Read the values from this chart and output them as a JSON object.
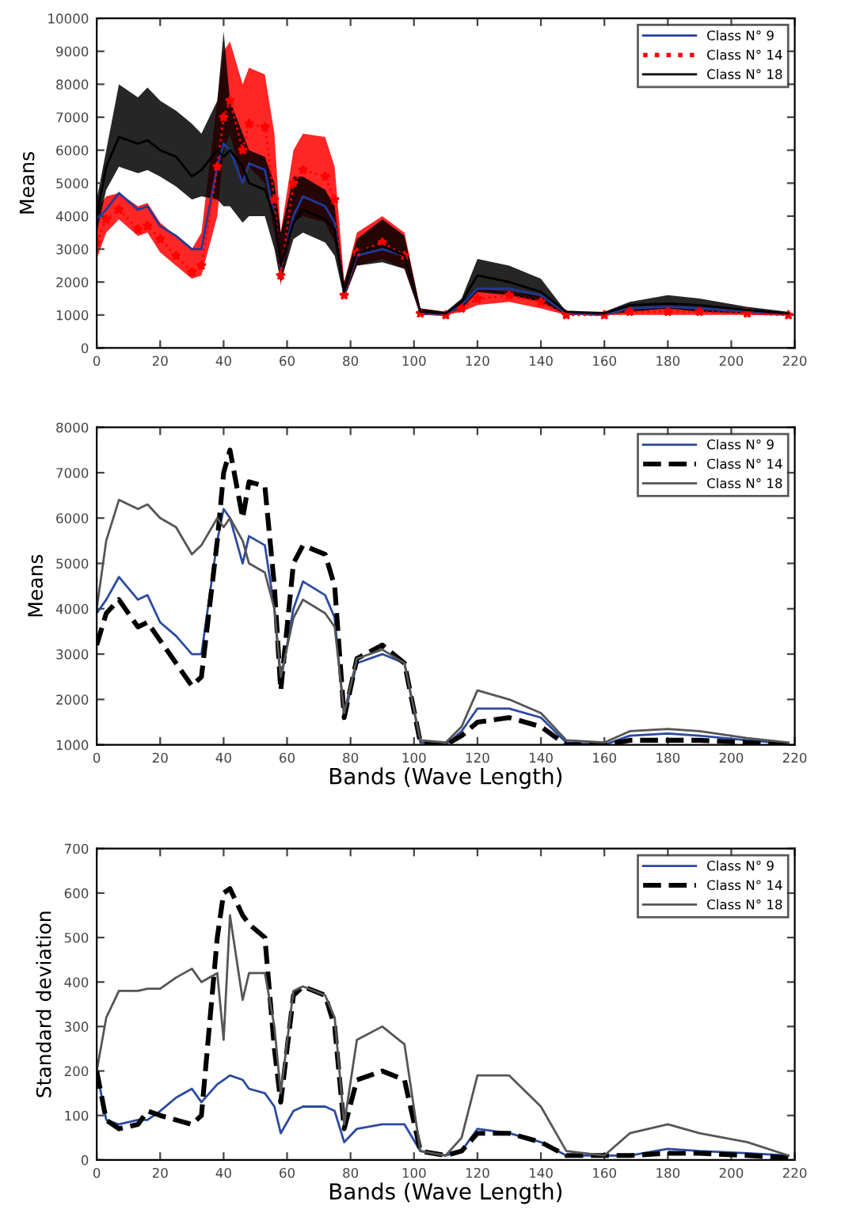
{
  "chart_data": [
    {
      "type": "line",
      "ylabel": "Means",
      "x": [
        0,
        3,
        7,
        13,
        16,
        20,
        25,
        30,
        33,
        38,
        40,
        42,
        46,
        48,
        53,
        56,
        58,
        62,
        65,
        72,
        75,
        78,
        82,
        90,
        97,
        102,
        110,
        115,
        120,
        130,
        140,
        148,
        160,
        168,
        180,
        190,
        205,
        218
      ],
      "xlim": [
        0,
        220
      ],
      "xticks": [
        0,
        20,
        40,
        60,
        80,
        100,
        120,
        140,
        160,
        180,
        200,
        220
      ],
      "ylim": [
        0,
        10000
      ],
      "yticks": [
        0,
        1000,
        2000,
        3000,
        4000,
        5000,
        6000,
        7000,
        8000,
        9000,
        10000
      ],
      "legend": "top right",
      "series": [
        {
          "name": "Class N° 9",
          "color": "#1f3a9a",
          "line_style": "solid",
          "values": [
            3900,
            4200,
            4700,
            4200,
            4300,
            3700,
            3400,
            3000,
            3000,
            5500,
            6200,
            6000,
            5000,
            5600,
            5400,
            4000,
            2400,
            4000,
            4600,
            4300,
            3800,
            1600,
            2800,
            3000,
            2800,
            1050,
            1000,
            1300,
            1800,
            1800,
            1600,
            1050,
            1000,
            1200,
            1250,
            1200,
            1100,
            1030
          ]
        },
        {
          "name": "Class N° 14",
          "color": "#ff0000",
          "line_style": "dotted",
          "marker": "star",
          "values": [
            3200,
            3900,
            4200,
            3600,
            3700,
            3300,
            2800,
            2300,
            2500,
            5500,
            7000,
            7500,
            6000,
            6800,
            6700,
            4500,
            2200,
            5000,
            5400,
            5200,
            4500,
            1600,
            2900,
            3200,
            2800,
            1050,
            1000,
            1200,
            1500,
            1600,
            1400,
            1000,
            1000,
            1100,
            1100,
            1100,
            1050,
            1000
          ],
          "lower": [
            2700,
            3500,
            3900,
            3400,
            3500,
            2900,
            2500,
            2100,
            2200,
            4000,
            6000,
            6500,
            5000,
            5500,
            5000,
            3500,
            1900,
            3800,
            4000,
            3800,
            3200,
            1500,
            2500,
            2700,
            2400,
            1000,
            1000,
            1100,
            1300,
            1400,
            1200,
            1000,
            1000,
            1000,
            1000,
            1000,
            1000,
            980
          ],
          "upper": [
            4200,
            4600,
            4700,
            4300,
            4400,
            3800,
            3400,
            3000,
            3500,
            7500,
            9000,
            9300,
            8000,
            8500,
            8300,
            6500,
            3500,
            6000,
            6500,
            6400,
            5500,
            2000,
            3500,
            4000,
            3500,
            1200,
            1100,
            1400,
            1800,
            1700,
            1600,
            1050,
            1050,
            1200,
            1300,
            1200,
            1100,
            1050
          ]
        },
        {
          "name": "Class N° 18",
          "color": "#000000",
          "line_style": "solid",
          "values": [
            4000,
            5500,
            6400,
            6200,
            6300,
            6000,
            5800,
            5200,
            5400,
            6000,
            5800,
            6000,
            5500,
            5000,
            4800,
            4000,
            2500,
            3800,
            4200,
            3900,
            3600,
            1700,
            2900,
            3100,
            2800,
            1100,
            1050,
            1400,
            2200,
            2000,
            1700,
            1100,
            1050,
            1300,
            1350,
            1300,
            1150,
            1050
          ],
          "lower": [
            3500,
            4800,
            5500,
            5300,
            5400,
            5200,
            4900,
            4500,
            4600,
            4500,
            4300,
            4300,
            3800,
            4000,
            4000,
            3000,
            2000,
            3300,
            3500,
            3200,
            2800,
            1500,
            2500,
            2600,
            2400,
            1000,
            1000,
            1200,
            1700,
            1600,
            1400,
            1000,
            1000,
            1100,
            1200,
            1100,
            1050,
            1000
          ],
          "upper": [
            4500,
            6000,
            8000,
            7600,
            7900,
            7500,
            7200,
            6800,
            6500,
            7500,
            9600,
            7500,
            6500,
            6000,
            5800,
            5000,
            3500,
            5200,
            5200,
            4800,
            4300,
            2000,
            3300,
            3900,
            3400,
            1200,
            1100,
            1500,
            2700,
            2500,
            2100,
            1100,
            1100,
            1400,
            1600,
            1500,
            1250,
            1100
          ]
        }
      ]
    },
    {
      "type": "line",
      "ylabel": "Means",
      "xlabel": "Bands (Wave Length)",
      "x": [
        0,
        3,
        7,
        13,
        16,
        20,
        25,
        30,
        33,
        38,
        40,
        42,
        46,
        48,
        53,
        56,
        58,
        62,
        65,
        72,
        75,
        78,
        82,
        90,
        97,
        102,
        110,
        115,
        120,
        130,
        140,
        148,
        160,
        168,
        180,
        190,
        205,
        218
      ],
      "xlim": [
        0,
        220
      ],
      "xticks": [
        0,
        20,
        40,
        60,
        80,
        100,
        120,
        140,
        160,
        180,
        200,
        220
      ],
      "ylim": [
        1000,
        8000
      ],
      "yticks": [
        1000,
        2000,
        3000,
        4000,
        5000,
        6000,
        7000,
        8000
      ],
      "legend": "top right",
      "series": [
        {
          "name": "Class N° 9",
          "color": "#2b4aa0",
          "line_style": "solid",
          "values": [
            3900,
            4200,
            4700,
            4200,
            4300,
            3700,
            3400,
            3000,
            3000,
            5500,
            6200,
            6000,
            5000,
            5600,
            5400,
            4000,
            2400,
            4000,
            4600,
            4300,
            3800,
            1600,
            2800,
            3000,
            2800,
            1050,
            1000,
            1300,
            1800,
            1800,
            1600,
            1050,
            1000,
            1200,
            1250,
            1200,
            1100,
            1030
          ]
        },
        {
          "name": "Class N° 14",
          "color": "#000000",
          "line_style": "dashed",
          "values": [
            3200,
            3900,
            4200,
            3600,
            3700,
            3300,
            2800,
            2300,
            2500,
            5500,
            7000,
            7500,
            6000,
            6800,
            6700,
            4500,
            2200,
            5000,
            5400,
            5200,
            4500,
            1600,
            2900,
            3200,
            2800,
            1050,
            1000,
            1200,
            1500,
            1600,
            1400,
            1000,
            1000,
            1100,
            1100,
            1100,
            1050,
            1000
          ]
        },
        {
          "name": "Class N° 18",
          "color": "#555555",
          "line_style": "solid",
          "values": [
            4000,
            5500,
            6400,
            6200,
            6300,
            6000,
            5800,
            5200,
            5400,
            6000,
            5800,
            6000,
            5500,
            5000,
            4800,
            4000,
            2500,
            3800,
            4200,
            3900,
            3600,
            1700,
            2900,
            3100,
            2800,
            1100,
            1050,
            1400,
            2200,
            2000,
            1700,
            1100,
            1050,
            1300,
            1350,
            1300,
            1150,
            1050
          ]
        }
      ]
    },
    {
      "type": "line",
      "ylabel": "Standard deviation",
      "xlabel": "Bands (Wave Length)",
      "x": [
        0,
        3,
        7,
        13,
        16,
        20,
        25,
        30,
        33,
        38,
        40,
        42,
        46,
        48,
        53,
        56,
        58,
        62,
        65,
        72,
        75,
        78,
        82,
        90,
        97,
        102,
        110,
        115,
        120,
        130,
        140,
        148,
        160,
        168,
        180,
        190,
        205,
        218
      ],
      "xlim": [
        0,
        220
      ],
      "xticks": [
        0,
        20,
        40,
        60,
        80,
        100,
        120,
        140,
        160,
        180,
        200,
        220
      ],
      "ylim": [
        0,
        700
      ],
      "yticks": [
        0,
        100,
        200,
        300,
        400,
        500,
        600,
        700
      ],
      "legend": "top right",
      "series": [
        {
          "name": "Class N° 9",
          "color": "#2b4aa0",
          "line_style": "solid",
          "values": [
            200,
            90,
            80,
            90,
            90,
            110,
            140,
            160,
            130,
            170,
            180,
            190,
            180,
            160,
            150,
            120,
            60,
            110,
            120,
            120,
            110,
            40,
            70,
            80,
            80,
            20,
            10,
            20,
            70,
            60,
            40,
            10,
            10,
            10,
            25,
            20,
            15,
            10
          ]
        },
        {
          "name": "Class N° 14",
          "color": "#000000",
          "line_style": "dashed",
          "values": [
            200,
            90,
            70,
            80,
            110,
            100,
            90,
            80,
            100,
            500,
            600,
            610,
            550,
            530,
            500,
            250,
            130,
            370,
            390,
            370,
            300,
            70,
            180,
            200,
            180,
            20,
            10,
            20,
            60,
            60,
            40,
            10,
            10,
            10,
            15,
            15,
            10,
            5
          ]
        },
        {
          "name": "Class N° 18",
          "color": "#555555",
          "line_style": "solid",
          "values": [
            200,
            320,
            380,
            380,
            385,
            385,
            410,
            430,
            400,
            420,
            270,
            550,
            360,
            420,
            420,
            300,
            150,
            380,
            390,
            370,
            320,
            80,
            270,
            300,
            260,
            20,
            10,
            50,
            190,
            190,
            120,
            20,
            10,
            60,
            80,
            60,
            40,
            10
          ]
        }
      ]
    }
  ]
}
